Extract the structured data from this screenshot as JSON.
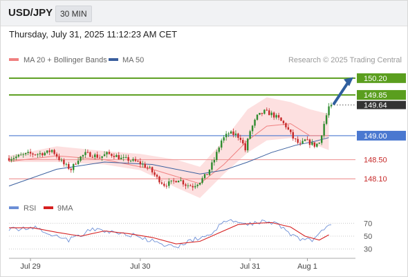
{
  "header": {
    "symbol": "USD/JPY",
    "timeframe": "30 MIN",
    "datetime": "Thursday, July 31, 2025 11:12:23 AM CET"
  },
  "legend": {
    "ma20_label": "MA 20 + Bollinger Bands",
    "ma50_label": "MA 50",
    "copyright": "Research © 2025 Trading Central",
    "rsi_label": "RSI",
    "rsi_ma_label": "9MA"
  },
  "colors": {
    "bull": "#2e8b2e",
    "bear": "#c62828",
    "resistance": "#5a9e1e",
    "pivot": "#4a78d0",
    "support": "#ef9a9a",
    "ma20": "#f08080",
    "ma50": "#3a5f9e",
    "band_fill": "#fde0e0",
    "rsi": "#6b8ed6",
    "rsi_ma": "#d62020",
    "arrow": "#2f5f9e"
  },
  "chart_data": [
    {
      "type": "candlestick",
      "ylim": [
        147.8,
        150.4
      ],
      "levels": [
        {
          "value": 150.2,
          "label": "150.20",
          "kind": "resistance"
        },
        {
          "value": 149.85,
          "label": "149.85",
          "kind": "resistance"
        },
        {
          "value": 149.64,
          "label": "149.64",
          "kind": "last"
        },
        {
          "value": 149.0,
          "label": "149.00",
          "kind": "pivot"
        },
        {
          "value": 148.5,
          "label": "148.50",
          "kind": "support"
        },
        {
          "value": 148.1,
          "label": "148.10",
          "kind": "support"
        }
      ],
      "x_ticks": [
        {
          "index": 9,
          "label": "Jul 29"
        },
        {
          "index": 55,
          "label": "Jul 30"
        },
        {
          "index": 101,
          "label": "Jul 31"
        },
        {
          "index": 125,
          "label": "Aug 1"
        }
      ],
      "waypoints": [
        [
          0,
          148.53
        ],
        [
          4,
          148.57
        ],
        [
          8,
          148.62
        ],
        [
          12,
          148.62
        ],
        [
          16,
          148.65
        ],
        [
          18,
          148.7
        ],
        [
          20,
          148.58
        ],
        [
          23,
          148.4
        ],
        [
          26,
          148.3
        ],
        [
          29,
          148.52
        ],
        [
          32,
          148.62
        ],
        [
          35,
          148.6
        ],
        [
          38,
          148.55
        ],
        [
          41,
          148.62
        ],
        [
          44,
          148.6
        ],
        [
          47,
          148.52
        ],
        [
          50,
          148.5
        ],
        [
          53,
          148.46
        ],
        [
          56,
          148.4
        ],
        [
          59,
          148.3
        ],
        [
          62,
          148.12
        ],
        [
          65,
          147.98
        ],
        [
          68,
          148.02
        ],
        [
          71,
          148.1
        ],
        [
          74,
          147.98
        ],
        [
          77,
          147.95
        ],
        [
          80,
          148.05
        ],
        [
          83,
          148.2
        ],
        [
          86,
          148.5
        ],
        [
          89,
          148.9
        ],
        [
          92,
          149.05
        ],
        [
          95,
          149.02
        ],
        [
          97,
          148.95
        ],
        [
          99,
          148.7
        ],
        [
          101,
          149.1
        ],
        [
          104,
          149.4
        ],
        [
          107,
          149.5
        ],
        [
          110,
          149.45
        ],
        [
          113,
          149.35
        ],
        [
          116,
          149.2
        ],
        [
          119,
          148.95
        ],
        [
          122,
          148.8
        ],
        [
          124,
          148.9
        ],
        [
          126,
          148.85
        ],
        [
          128,
          148.8
        ],
        [
          130,
          148.85
        ],
        [
          132,
          149.25
        ],
        [
          134,
          149.6
        ],
        [
          135,
          149.64
        ]
      ],
      "ma20": [
        [
          0,
          148.46
        ],
        [
          20,
          148.58
        ],
        [
          40,
          148.5
        ],
        [
          60,
          148.3
        ],
        [
          80,
          148.0
        ],
        [
          90,
          148.4
        ],
        [
          100,
          148.9
        ],
        [
          108,
          149.2
        ],
        [
          118,
          149.25
        ],
        [
          126,
          149.0
        ],
        [
          134,
          149.0
        ]
      ],
      "ma50": [
        [
          0,
          147.95
        ],
        [
          20,
          148.3
        ],
        [
          40,
          148.45
        ],
        [
          60,
          148.4
        ],
        [
          80,
          148.2
        ],
        [
          90,
          148.28
        ],
        [
          100,
          148.45
        ],
        [
          110,
          148.65
        ],
        [
          120,
          148.8
        ],
        [
          128,
          148.88
        ],
        [
          134,
          148.96
        ]
      ],
      "bb_upper": [
        [
          0,
          148.58
        ],
        [
          20,
          148.78
        ],
        [
          40,
          148.68
        ],
        [
          55,
          148.62
        ],
        [
          70,
          148.5
        ],
        [
          80,
          148.35
        ],
        [
          90,
          148.9
        ],
        [
          100,
          149.55
        ],
        [
          108,
          149.8
        ],
        [
          118,
          149.7
        ],
        [
          126,
          149.55
        ],
        [
          134,
          149.45
        ]
      ],
      "bb_lower": [
        [
          0,
          148.45
        ],
        [
          20,
          148.45
        ],
        [
          40,
          148.4
        ],
        [
          55,
          148.28
        ],
        [
          70,
          147.92
        ],
        [
          80,
          147.7
        ],
        [
          90,
          148.2
        ],
        [
          100,
          148.65
        ],
        [
          108,
          148.9
        ],
        [
          118,
          148.95
        ],
        [
          126,
          148.85
        ],
        [
          134,
          148.7
        ]
      ]
    },
    {
      "type": "line",
      "ylim": [
        20,
        80
      ],
      "y_ticks": [
        30,
        50,
        70
      ],
      "series": [
        {
          "name": "RSI",
          "values": [
            [
              0,
              62
            ],
            [
              5,
              60
            ],
            [
              10,
              64
            ],
            [
              15,
              58
            ],
            [
              20,
              50
            ],
            [
              25,
              44
            ],
            [
              30,
              52
            ],
            [
              35,
              60
            ],
            [
              40,
              58
            ],
            [
              45,
              55
            ],
            [
              50,
              53
            ],
            [
              55,
              48
            ],
            [
              60,
              42
            ],
            [
              65,
              35
            ],
            [
              70,
              33
            ],
            [
              75,
              42
            ],
            [
              80,
              47
            ],
            [
              85,
              55
            ],
            [
              89,
              68
            ],
            [
              92,
              75
            ],
            [
              96,
              70
            ],
            [
              100,
              68
            ],
            [
              104,
              72
            ],
            [
              108,
              73
            ],
            [
              112,
              70
            ],
            [
              116,
              60
            ],
            [
              120,
              48
            ],
            [
              124,
              44
            ],
            [
              128,
              45
            ],
            [
              131,
              58
            ],
            [
              134,
              70
            ]
          ]
        },
        {
          "name": "9MA",
          "values": [
            [
              0,
              63
            ],
            [
              10,
              63
            ],
            [
              20,
              56
            ],
            [
              30,
              50
            ],
            [
              40,
              58
            ],
            [
              50,
              54
            ],
            [
              60,
              48
            ],
            [
              70,
              38
            ],
            [
              80,
              42
            ],
            [
              88,
              55
            ],
            [
              96,
              68
            ],
            [
              104,
              70
            ],
            [
              110,
              71
            ],
            [
              118,
              64
            ],
            [
              124,
              50
            ],
            [
              130,
              44
            ],
            [
              134,
              52
            ]
          ]
        }
      ]
    }
  ]
}
